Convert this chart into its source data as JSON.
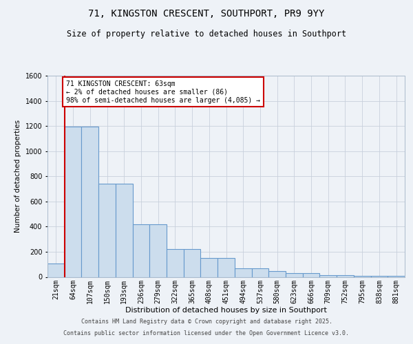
{
  "title1": "71, KINGSTON CRESCENT, SOUTHPORT, PR9 9YY",
  "title2": "Size of property relative to detached houses in Southport",
  "xlabel": "Distribution of detached houses by size in Southport",
  "ylabel": "Number of detached properties",
  "categories": [
    "21sqm",
    "64sqm",
    "107sqm",
    "150sqm",
    "193sqm",
    "236sqm",
    "279sqm",
    "322sqm",
    "365sqm",
    "408sqm",
    "451sqm",
    "494sqm",
    "537sqm",
    "580sqm",
    "623sqm",
    "666sqm",
    "709sqm",
    "752sqm",
    "795sqm",
    "838sqm",
    "881sqm"
  ],
  "values": [
    105,
    1195,
    1195,
    740,
    740,
    420,
    420,
    220,
    220,
    148,
    148,
    70,
    70,
    45,
    28,
    28,
    13,
    13,
    10,
    10,
    7
  ],
  "bar_color": "#ccdded",
  "bar_edge_color": "#6699cc",
  "vline_x": 1.0,
  "vline_color": "#cc0000",
  "annotation_text": "71 KINGSTON CRESCENT: 63sqm\n← 2% of detached houses are smaller (86)\n98% of semi-detached houses are larger (4,085) →",
  "annotation_box_facecolor": "#ffffff",
  "annotation_box_edgecolor": "#cc0000",
  "ylim": [
    0,
    1600
  ],
  "yticks": [
    0,
    200,
    400,
    600,
    800,
    1000,
    1200,
    1400,
    1600
  ],
  "footer1": "Contains HM Land Registry data © Crown copyright and database right 2025.",
  "footer2": "Contains public sector information licensed under the Open Government Licence v3.0.",
  "bg_color": "#eef2f7",
  "grid_color": "#c8d0dc",
  "title1_fontsize": 10,
  "title2_fontsize": 8.5,
  "ylabel_fontsize": 7.5,
  "xlabel_fontsize": 8,
  "tick_fontsize": 7,
  "annot_fontsize": 7,
  "footer_fontsize": 6
}
